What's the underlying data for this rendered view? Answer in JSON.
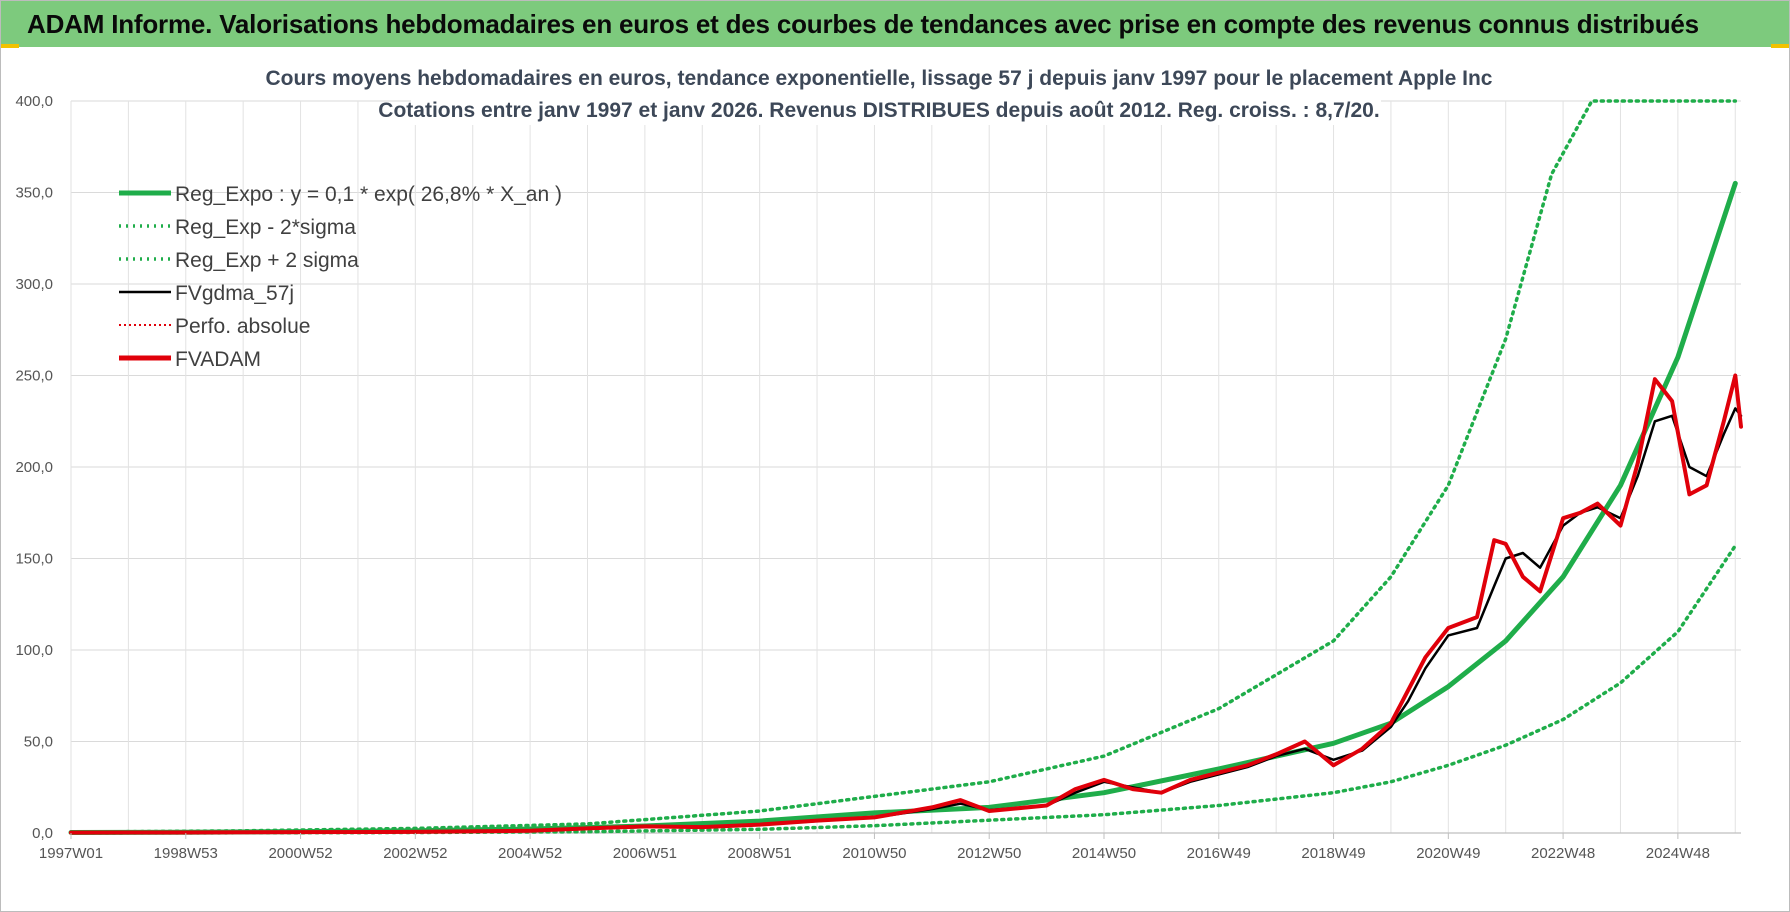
{
  "header": {
    "title": "ADAM Informe. Valorisations hebdomadaires en euros et des courbes de tendances avec prise en compte des revenus connus distribués",
    "background_color": "#7dca7d"
  },
  "chart_data": {
    "type": "line",
    "title_line1": "Cours moyens hebdomadaires en euros, tendance exponentielle, lissage 57 j depuis janv 1997  pour le placement Apple Inc",
    "title_line2": "Cotations entre janv 1997 et janv 2026. Revenus DISTRIBUES depuis août 2012. Reg. croiss. : 8,7/20.",
    "xlabel": "",
    "ylabel": "",
    "x_unit": "year",
    "xlim": [
      1997.0,
      2026.1
    ],
    "ylim": [
      0,
      400
    ],
    "y_ticks": [
      "0,0",
      "50,0",
      "100,0",
      "150,0",
      "200,0",
      "250,0",
      "300,0",
      "350,0",
      "400,0"
    ],
    "y_tick_values": [
      0,
      50,
      100,
      150,
      200,
      250,
      300,
      350,
      400
    ],
    "x_ticks": [
      {
        "label": "1997W01",
        "x": 1997.0
      },
      {
        "label": "1998W53",
        "x": 1999.0
      },
      {
        "label": "2000W52",
        "x": 2001.0
      },
      {
        "label": "2002W52",
        "x": 2003.0
      },
      {
        "label": "2004W52",
        "x": 2005.0
      },
      {
        "label": "2006W51",
        "x": 2007.0
      },
      {
        "label": "2008W51",
        "x": 2009.0
      },
      {
        "label": "2010W50",
        "x": 2011.0
      },
      {
        "label": "2012W50",
        "x": 2013.0
      },
      {
        "label": "2014W50",
        "x": 2015.0
      },
      {
        "label": "2016W49",
        "x": 2017.0
      },
      {
        "label": "2018W49",
        "x": 2019.0
      },
      {
        "label": "2020W49",
        "x": 2021.0
      },
      {
        "label": "2022W48",
        "x": 2023.0
      },
      {
        "label": "2024W48",
        "x": 2025.0
      }
    ],
    "grid": true,
    "legend_position": "top-left",
    "series": [
      {
        "name": "Reg_Expo : y = 0,1 * exp( 26,8% *  X_an )",
        "color": "#1fad4a",
        "style": "solid-thick",
        "x": [
          1997,
          1999,
          2001,
          2003,
          2005,
          2007,
          2009,
          2011,
          2013,
          2015,
          2017,
          2019,
          2020,
          2021,
          2022,
          2023,
          2024,
          2025,
          2026
        ],
        "values": [
          0.26,
          0.44,
          0.75,
          1.28,
          2.2,
          3.8,
          6.5,
          11,
          14,
          22,
          35,
          49,
          60,
          80,
          105,
          140,
          190,
          260,
          355
        ]
      },
      {
        "name": "Reg_Exp - 2*sigma",
        "color": "#1fad4a",
        "style": "dotted",
        "x": [
          1997,
          2000,
          2003,
          2006,
          2009,
          2011,
          2013,
          2015,
          2017,
          2019,
          2020,
          2021,
          2022,
          2023,
          2024,
          2025,
          2026
        ],
        "values": [
          0,
          0.1,
          0.3,
          0.7,
          2,
          4,
          7,
          10,
          15,
          22,
          28,
          37,
          48,
          62,
          82,
          110,
          157
        ]
      },
      {
        "name": "Reg_Exp + 2 sigma",
        "color": "#1fad4a",
        "style": "dotted",
        "x": [
          1997,
          2000,
          2003,
          2006,
          2009,
          2011,
          2013,
          2015,
          2017,
          2019,
          2020,
          2021,
          2022,
          2022.8,
          2023.5,
          2024,
          2025,
          2026
        ],
        "values": [
          0.5,
          1.2,
          2.5,
          5,
          12,
          20,
          28,
          42,
          68,
          105,
          140,
          190,
          270,
          360,
          400,
          400,
          400,
          400
        ]
      },
      {
        "name": "FVgdma_57j",
        "color": "#000000",
        "style": "solid",
        "x": [
          1997,
          1999,
          2001,
          2003,
          2005,
          2006,
          2007,
          2008,
          2009,
          2010,
          2011,
          2012,
          2012.5,
          2013,
          2014,
          2014.5,
          2015,
          2015.5,
          2016,
          2016.5,
          2017,
          2017.5,
          2018,
          2018.5,
          2019,
          2019.5,
          2020,
          2020.3,
          2020.6,
          2021,
          2021.5,
          2021.8,
          2022,
          2022.3,
          2022.6,
          2023,
          2023.3,
          2023.6,
          2024,
          2024.3,
          2024.6,
          2024.9,
          2025.2,
          2025.5,
          2025.8,
          2026,
          2026.1
        ],
        "values": [
          0.2,
          0.3,
          0.5,
          0.6,
          1.2,
          2.5,
          3.5,
          3.5,
          4.5,
          6.5,
          8.5,
          13,
          16,
          12.5,
          15,
          22,
          28,
          25,
          22,
          28,
          32,
          36,
          42,
          46,
          40,
          45,
          58,
          72,
          90,
          108,
          112,
          135,
          150,
          153,
          145,
          168,
          175,
          178,
          172,
          195,
          225,
          228,
          200,
          195,
          218,
          232,
          228
        ]
      },
      {
        "name": "Perfo. absolue",
        "color": "#e0000a",
        "style": "dotted-thin",
        "x": [
          1997,
          1999,
          2001,
          2003,
          2005,
          2006,
          2007,
          2008,
          2009,
          2010,
          2011,
          2012,
          2012.5,
          2013,
          2014,
          2014.5,
          2015,
          2015.5,
          2016,
          2016.5,
          2017,
          2017.5,
          2018,
          2018.5,
          2019,
          2019.5,
          2020,
          2020.3,
          2020.6,
          2021,
          2021.5,
          2021.8,
          2022,
          2022.3,
          2022.6,
          2023,
          2023.3,
          2023.6,
          2024,
          2024.3,
          2024.6,
          2024.9,
          2025.2,
          2025.5,
          2025.8,
          2026,
          2026.1
        ],
        "values": [
          0.2,
          0.3,
          0.5,
          0.6,
          1.2,
          2.5,
          3.6,
          3.2,
          4.6,
          6.8,
          8.5,
          14,
          18,
          12,
          15,
          24,
          29,
          24,
          22,
          29,
          33,
          37,
          43,
          50,
          37,
          46,
          60,
          78,
          96,
          112,
          118,
          160,
          158,
          140,
          132,
          172,
          175,
          180,
          168,
          202,
          248,
          236,
          185,
          190,
          225,
          250,
          222
        ]
      },
      {
        "name": "FVADAM",
        "color": "#e0000a",
        "style": "solid-thick",
        "x": [
          1997,
          1999,
          2001,
          2003,
          2005,
          2006,
          2007,
          2008,
          2009,
          2010,
          2011,
          2012,
          2012.5,
          2013,
          2014,
          2014.5,
          2015,
          2015.5,
          2016,
          2016.5,
          2017,
          2017.5,
          2018,
          2018.5,
          2019,
          2019.5,
          2020,
          2020.3,
          2020.6,
          2021,
          2021.5,
          2021.8,
          2022,
          2022.3,
          2022.6,
          2023,
          2023.3,
          2023.6,
          2024,
          2024.3,
          2024.6,
          2024.9,
          2025.2,
          2025.5,
          2025.8,
          2026,
          2026.1
        ],
        "values": [
          0.2,
          0.3,
          0.5,
          0.6,
          1.2,
          2.5,
          3.6,
          3.2,
          4.6,
          6.8,
          8.5,
          14,
          18,
          12,
          15,
          24,
          29,
          24,
          22,
          29,
          33,
          37,
          43,
          50,
          37,
          46,
          60,
          78,
          96,
          112,
          118,
          160,
          158,
          140,
          132,
          172,
          175,
          180,
          168,
          202,
          248,
          236,
          185,
          190,
          225,
          250,
          222
        ]
      }
    ]
  }
}
